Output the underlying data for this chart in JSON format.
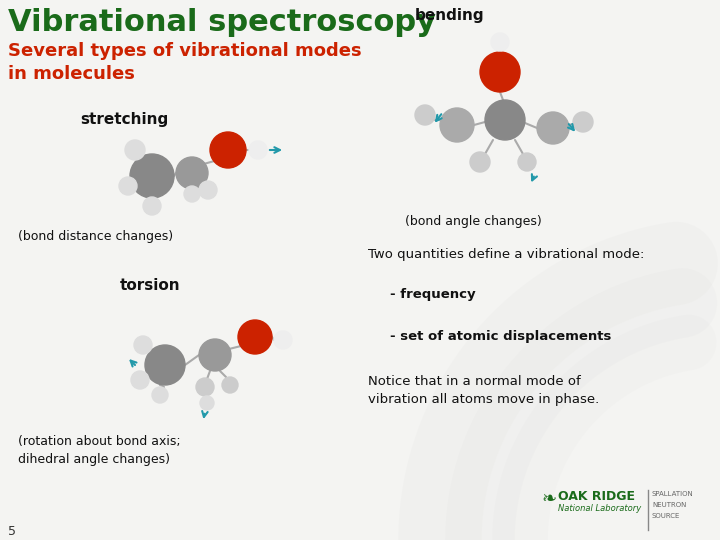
{
  "title": "Vibrational spectroscopy",
  "subtitle": "Several types of vibrational modes\nin molecules",
  "title_color": "#1a6b1a",
  "subtitle_color": "#cc2200",
  "background_color": "#f4f4f2",
  "slide_number": "5",
  "labels": {
    "stretching": "stretching",
    "stretching_sub": "(bond distance changes)",
    "bending": "bending",
    "bending_sub": "(bond angle changes)",
    "torsion": "torsion",
    "torsion_sub": "(rotation about bond axis;\ndihedral angle changes)"
  },
  "right_text": {
    "line1": "Two quantities define a vibrational mode:",
    "line2": "- frequency",
    "line3": "- set of atomic displacements",
    "line4": "Notice that in a normal mode of\nvibration all atoms move in phase."
  },
  "oak_ridge_color": "#1a6b1a",
  "sns_color": "#666666"
}
